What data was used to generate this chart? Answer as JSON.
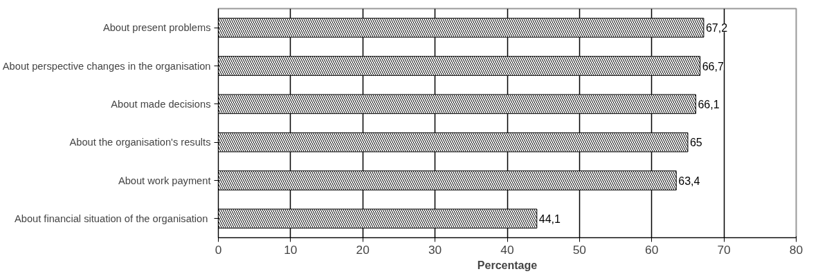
{
  "chart_data": {
    "type": "bar",
    "orientation": "horizontal",
    "xlabel": "Percentage",
    "categories": [
      "About present problems",
      "About perspective changes in the organisation",
      "About made decisions",
      "About the organisation's results",
      "About work payment",
      "About  financial situation of the organisation"
    ],
    "values": [
      67.2,
      66.7,
      66.1,
      65,
      63.4,
      44.1
    ],
    "value_labels": [
      "67,2",
      "66,7",
      "66,1",
      "65",
      "63,4",
      "44,1"
    ],
    "color": "#000000",
    "xlim": [
      0,
      80
    ],
    "xticks": [
      0,
      10,
      20,
      30,
      40,
      50,
      60,
      70,
      80
    ],
    "grid": "x"
  }
}
